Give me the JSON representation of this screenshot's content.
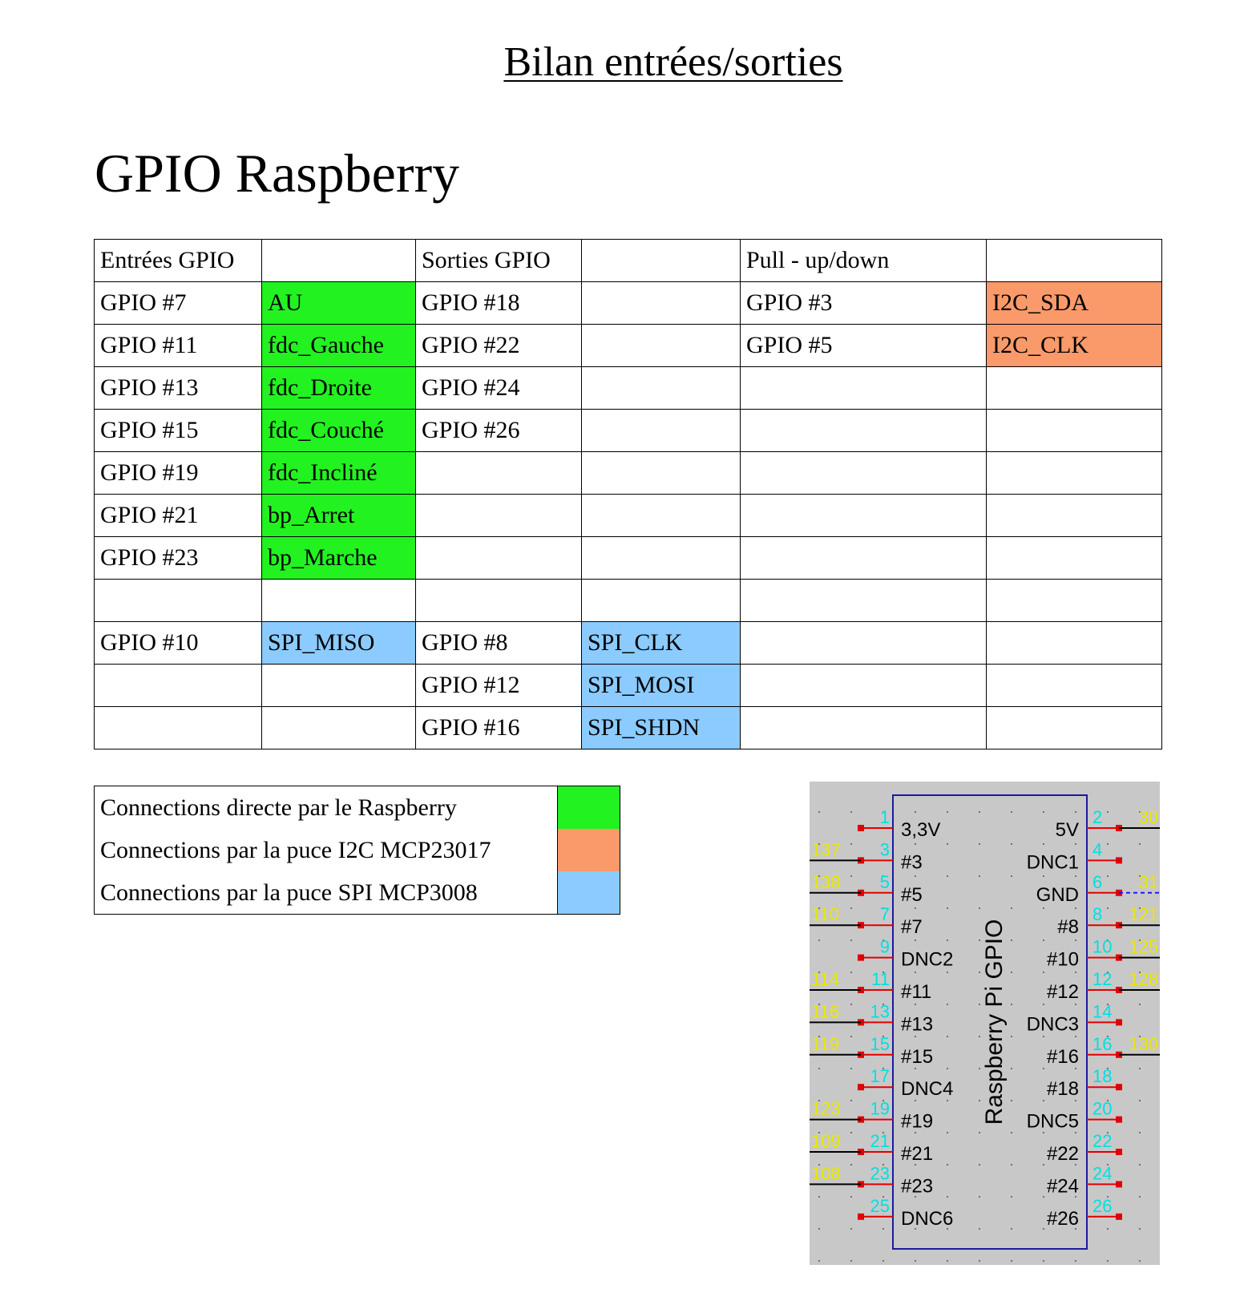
{
  "doc": {
    "title": "Bilan entrées/sorties",
    "heading": "GPIO Raspberry"
  },
  "table": {
    "headers": [
      "Entrées GPIO",
      "",
      "Sorties GPIO",
      "",
      "Pull - up/down",
      ""
    ],
    "rows": [
      [
        "GPIO #7",
        "AU",
        "GPIO #18",
        "",
        "GPIO #3",
        "I2C_SDA"
      ],
      [
        "GPIO #11",
        "fdc_Gauche",
        "GPIO #22",
        "",
        "GPIO #5",
        "I2C_CLK"
      ],
      [
        "GPIO #13",
        "fdc_Droite",
        "GPIO #24",
        "",
        "",
        ""
      ],
      [
        "GPIO #15",
        "fdc_Couché",
        "GPIO #26",
        "",
        "",
        ""
      ],
      [
        "GPIO #19",
        "fdc_Incliné",
        "",
        "",
        "",
        ""
      ],
      [
        "GPIO #21",
        "bp_Arret",
        "",
        "",
        "",
        ""
      ],
      [
        "GPIO #23",
        "bp_Marche",
        "",
        "",
        "",
        ""
      ],
      [
        "",
        "",
        "",
        "",
        "",
        ""
      ],
      [
        "GPIO #10",
        "SPI_MISO",
        "GPIO #8",
        "SPI_CLK",
        "",
        ""
      ],
      [
        "",
        "",
        "GPIO #12",
        "SPI_MOSI",
        "",
        ""
      ],
      [
        "",
        "",
        "GPIO #16",
        "SPI_SHDN",
        "",
        ""
      ]
    ]
  },
  "legend": [
    {
      "label": "Connections directe par le Raspberry",
      "color": "#23f221"
    },
    {
      "label": "Connections par la puce I2C MCP23017",
      "color": "#fa9a6a"
    },
    {
      "label": "Connections par la puce SPI MCP3008",
      "color": "#8bcbff"
    }
  ],
  "schematic": {
    "chip_label": "Raspberry Pi GPIO",
    "left_pins": [
      {
        "num": "1",
        "name": "3,3V",
        "net": ""
      },
      {
        "num": "3",
        "name": "#3",
        "net": "137"
      },
      {
        "num": "5",
        "name": "#5",
        "net": "138"
      },
      {
        "num": "7",
        "name": "#7",
        "net": "110"
      },
      {
        "num": "9",
        "name": "DNC2",
        "net": ""
      },
      {
        "num": "11",
        "name": "#11",
        "net": "114"
      },
      {
        "num": "13",
        "name": "#13",
        "net": "116"
      },
      {
        "num": "15",
        "name": "#15",
        "net": "119"
      },
      {
        "num": "17",
        "name": "DNC4",
        "net": ""
      },
      {
        "num": "19",
        "name": "#19",
        "net": "123"
      },
      {
        "num": "21",
        "name": "#21",
        "net": "109"
      },
      {
        "num": "23",
        "name": "#23",
        "net": "108"
      },
      {
        "num": "25",
        "name": "DNC6",
        "net": ""
      }
    ],
    "right_pins": [
      {
        "num": "2",
        "name": "5V",
        "net": "30"
      },
      {
        "num": "4",
        "name": "DNC1",
        "net": ""
      },
      {
        "num": "6",
        "name": "GND",
        "net": "31"
      },
      {
        "num": "8",
        "name": "#8",
        "net": "121"
      },
      {
        "num": "10",
        "name": "#10",
        "net": "125"
      },
      {
        "num": "12",
        "name": "#12",
        "net": "128"
      },
      {
        "num": "14",
        "name": "DNC3",
        "net": ""
      },
      {
        "num": "16",
        "name": "#16",
        "net": "130"
      },
      {
        "num": "18",
        "name": "#18",
        "net": ""
      },
      {
        "num": "20",
        "name": "DNC5",
        "net": ""
      },
      {
        "num": "22",
        "name": "#22",
        "net": ""
      },
      {
        "num": "24",
        "name": "#24",
        "net": ""
      },
      {
        "num": "26",
        "name": "#26",
        "net": ""
      }
    ],
    "colors": {
      "background": "#c8c8c8",
      "body": "#1a1aa0",
      "pin": "#e00000",
      "pin_num": "#00e0e0",
      "net": "#e8e800"
    }
  }
}
